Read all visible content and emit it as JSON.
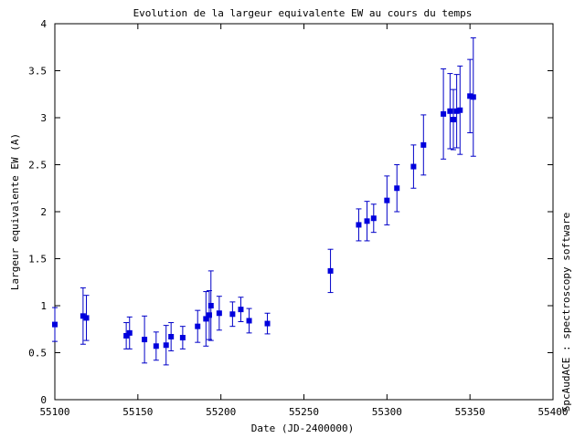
{
  "chart_data": {
    "type": "scatter",
    "title": "Evolution de la largeur equivalente EW au cours du temps",
    "xlabel": "Date (JD-2400000)",
    "ylabel": "Largeur equivalente EW (A)",
    "side_label": "SpcAudACE : spectroscopy software",
    "xlim": [
      55100,
      55400
    ],
    "ylim": [
      0,
      4
    ],
    "x_ticks": [
      "55100",
      "55150",
      "55200",
      "55250",
      "55300",
      "55350",
      "55400"
    ],
    "y_ticks": [
      "0",
      "0.5",
      "1",
      "1.5",
      "2",
      "2.5",
      "3",
      "3.5",
      "4"
    ],
    "grid": false,
    "error_bars": true,
    "series": [
      {
        "color": "#0000dd",
        "points": [
          {
            "x": 55100,
            "y": 0.8,
            "err": 0.18
          },
          {
            "x": 55117,
            "y": 0.89,
            "err": 0.3
          },
          {
            "x": 55119,
            "y": 0.87,
            "err": 0.24
          },
          {
            "x": 55143,
            "y": 0.68,
            "err": 0.14
          },
          {
            "x": 55145,
            "y": 0.71,
            "err": 0.17
          },
          {
            "x": 55154,
            "y": 0.64,
            "err": 0.25
          },
          {
            "x": 55161,
            "y": 0.57,
            "err": 0.15
          },
          {
            "x": 55167,
            "y": 0.58,
            "err": 0.21
          },
          {
            "x": 55170,
            "y": 0.67,
            "err": 0.15
          },
          {
            "x": 55177,
            "y": 0.66,
            "err": 0.12
          },
          {
            "x": 55186,
            "y": 0.78,
            "err": 0.17
          },
          {
            "x": 55191,
            "y": 0.86,
            "err": 0.29
          },
          {
            "x": 55193,
            "y": 0.9,
            "err": 0.26
          },
          {
            "x": 55194,
            "y": 1.0,
            "err": 0.37
          },
          {
            "x": 55199,
            "y": 0.92,
            "err": 0.18
          },
          {
            "x": 55207,
            "y": 0.91,
            "err": 0.13
          },
          {
            "x": 55212,
            "y": 0.96,
            "err": 0.13
          },
          {
            "x": 55217,
            "y": 0.84,
            "err": 0.13
          },
          {
            "x": 55228,
            "y": 0.81,
            "err": 0.11
          },
          {
            "x": 55266,
            "y": 1.37,
            "err": 0.23
          },
          {
            "x": 55283,
            "y": 1.86,
            "err": 0.17
          },
          {
            "x": 55288,
            "y": 1.9,
            "err": 0.21
          },
          {
            "x": 55292,
            "y": 1.93,
            "err": 0.15
          },
          {
            "x": 55300,
            "y": 2.12,
            "err": 0.26
          },
          {
            "x": 55306,
            "y": 2.25,
            "err": 0.25
          },
          {
            "x": 55316,
            "y": 2.48,
            "err": 0.23
          },
          {
            "x": 55322,
            "y": 2.71,
            "err": 0.32
          },
          {
            "x": 55334,
            "y": 3.04,
            "err": 0.48
          },
          {
            "x": 55338,
            "y": 3.07,
            "err": 0.4
          },
          {
            "x": 55340,
            "y": 2.98,
            "err": 0.32
          },
          {
            "x": 55342,
            "y": 3.07,
            "err": 0.39
          },
          {
            "x": 55344,
            "y": 3.08,
            "err": 0.47
          },
          {
            "x": 55350,
            "y": 3.23,
            "err": 0.39
          },
          {
            "x": 55352,
            "y": 3.22,
            "err": 0.63
          }
        ]
      }
    ]
  }
}
